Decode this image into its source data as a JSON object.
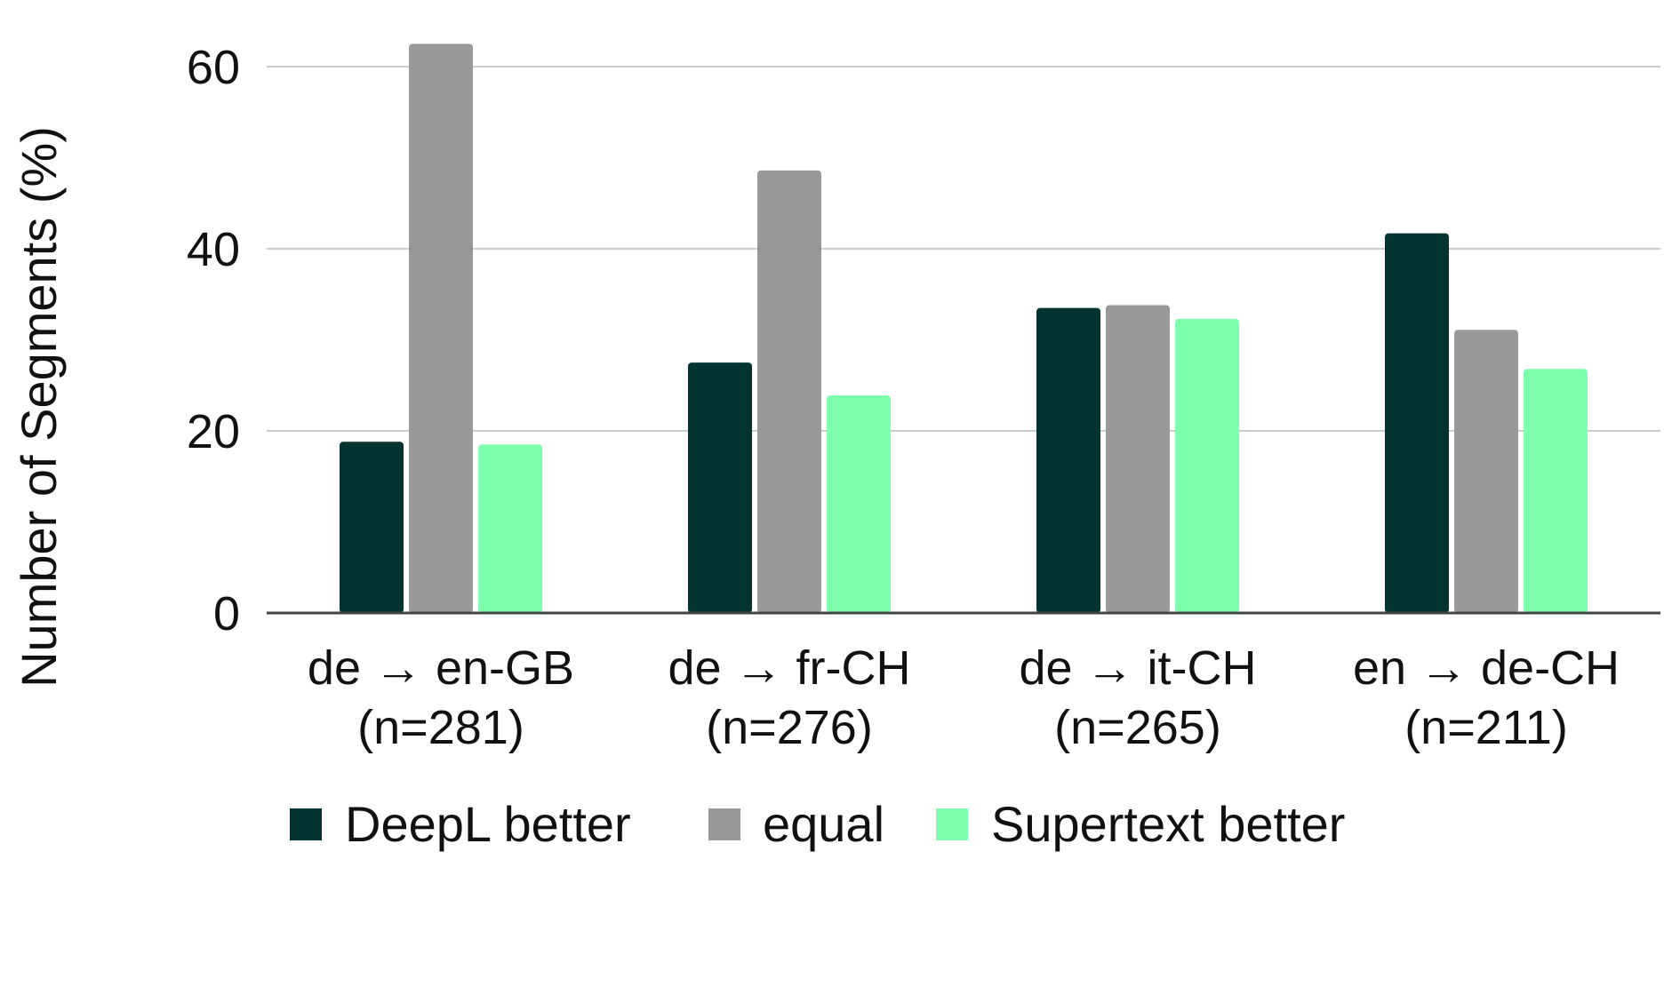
{
  "chart_data": {
    "type": "bar",
    "ylabel": "Number of Segments (%)",
    "ylim": [
      0,
      62
    ],
    "yticks": [
      0,
      20,
      40,
      60
    ],
    "grid": true,
    "legend_position": "bottom",
    "categories": [
      {
        "line1": "de → en-GB",
        "line2": "(n=281)"
      },
      {
        "line1": "de → fr-CH",
        "line2": "(n=276)"
      },
      {
        "line1": "de → it-CH",
        "line2": "(n=265)"
      },
      {
        "line1": "en → de-CH",
        "line2": "(n=211)"
      }
    ],
    "series": [
      {
        "name": "DeepL better",
        "color": "#033431",
        "values": [
          18.8,
          27.5,
          33.5,
          41.7
        ]
      },
      {
        "name": "equal",
        "color": "#999999",
        "values": [
          62.5,
          48.6,
          33.8,
          31.1
        ]
      },
      {
        "name": "Supertext better",
        "color": "#7dffae",
        "values": [
          18.5,
          23.9,
          32.3,
          26.8
        ]
      }
    ]
  }
}
